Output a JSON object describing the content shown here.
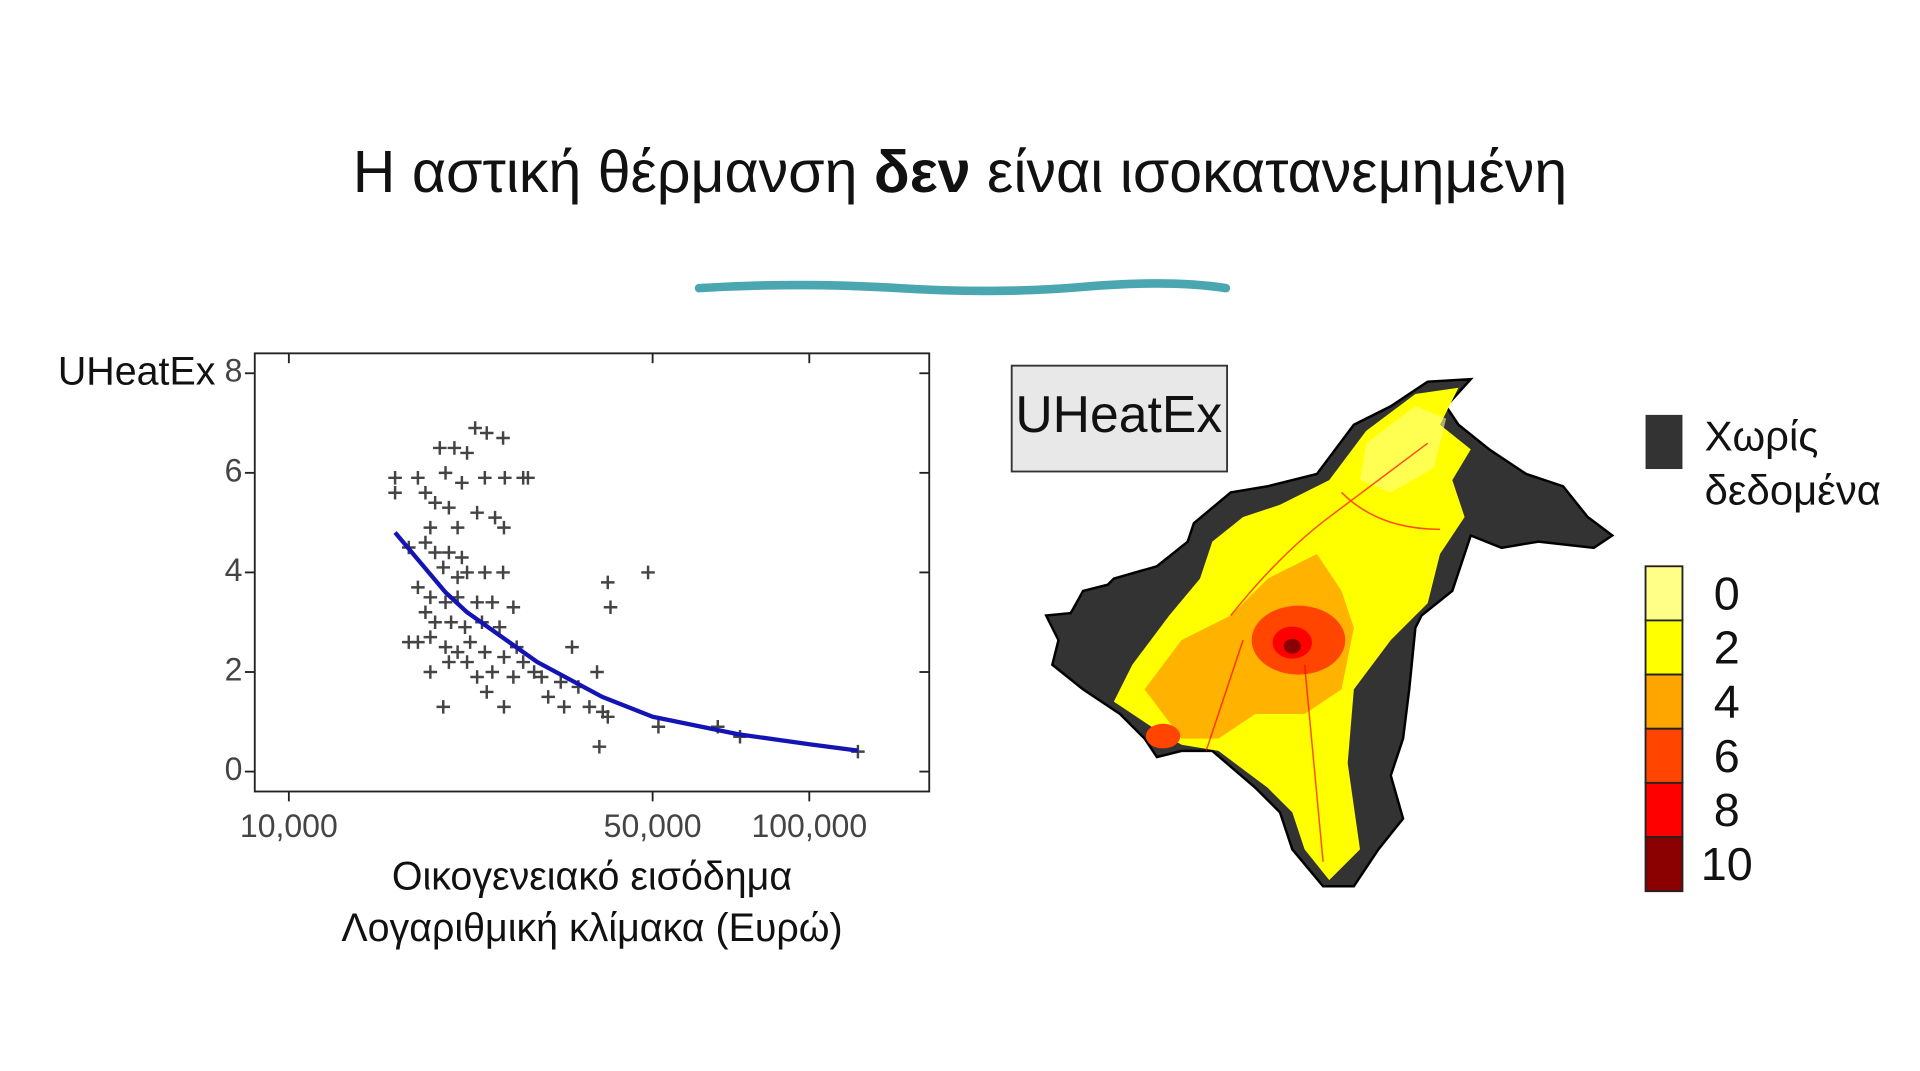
{
  "slide_title": {
    "before": "Η αστική θέρμανση",
    "bold": "δεν",
    "after": "είναι ισοκατανεμημένη"
  },
  "chart_data": [
    {
      "type": "scatter",
      "y_label": "UHeatEx",
      "x_label": [
        "Οικογενειακό εισόδημα",
        "Λογαριθμική κλίμακα (Ευρώ)"
      ],
      "xscale": "log",
      "xlim": [
        8600,
        170000
      ],
      "ylim": [
        -0.4,
        8.4
      ],
      "xticks": [
        {
          "value": 10000,
          "label": "10,000"
        },
        {
          "value": 50000,
          "label": "50,000"
        },
        {
          "value": 100000,
          "label": "100,000"
        }
      ],
      "yticks": [
        0,
        2,
        4,
        6,
        8
      ],
      "points": {
        "color": "#444444",
        "x": [
          16000,
          16000,
          17700,
          18300,
          19500,
          20800,
          22800,
          24000,
          25800,
          22000,
          23800,
          26000,
          28200,
          28800,
          20000,
          21500,
          19100,
          20300,
          23000,
          24900,
          25900,
          21100,
          18700,
          17000,
          18300,
          19100,
          20300,
          21500,
          19800,
          21100,
          22000,
          23800,
          25800,
          17700,
          18700,
          20000,
          21100,
          23000,
          24600,
          27000,
          18300,
          19100,
          20500,
          21800,
          23500,
          25400,
          17700,
          18700,
          20000,
          21100,
          22300,
          23800,
          25900,
          27400,
          28200,
          29600,
          30600,
          33300,
          36000,
          35000,
          39100,
          31500,
          33800,
          37800,
          40100,
          41000,
          39500,
          25900,
          24000,
          19800,
          17000,
          41000,
          41500,
          49000,
          51300,
          66700,
          73600,
          124000,
          22000,
          23000,
          24600,
          27000,
          18700,
          20300
        ],
        "y": [
          5.9,
          5.6,
          5.9,
          5.6,
          6.5,
          6.5,
          6.9,
          6.8,
          6.7,
          6.4,
          5.9,
          5.9,
          5.9,
          5.9,
          6.0,
          5.8,
          5.4,
          5.3,
          5.2,
          5.1,
          4.9,
          4.9,
          4.9,
          4.5,
          4.6,
          4.4,
          4.4,
          4.3,
          4.1,
          3.9,
          4.0,
          4.0,
          4.0,
          3.7,
          3.5,
          3.4,
          3.5,
          3.4,
          3.4,
          3.3,
          3.2,
          3.0,
          3.0,
          2.9,
          3.0,
          2.9,
          2.6,
          2.7,
          2.5,
          2.4,
          2.6,
          2.4,
          2.3,
          2.5,
          2.2,
          2.0,
          1.9,
          1.8,
          1.7,
          2.5,
          2.0,
          1.5,
          1.3,
          1.3,
          1.2,
          1.1,
          0.5,
          1.3,
          1.6,
          1.3,
          2.6,
          3.8,
          3.3,
          4.0,
          0.9,
          0.9,
          0.7,
          0.4,
          2.2,
          1.9,
          2.0,
          1.9,
          2.0,
          2.2
        ]
      },
      "fit": {
        "color": "#1414b4",
        "x": [
          16000,
          20000,
          22000,
          30000,
          40000,
          50000,
          73000,
          100000,
          124000
        ],
        "y": [
          4.8,
          3.6,
          3.2,
          2.2,
          1.5,
          1.1,
          0.75,
          0.55,
          0.42
        ]
      }
    },
    {
      "type": "map",
      "title": "UHeatEx",
      "no_data": {
        "label": [
          "Χωρίς",
          "δεδομένα"
        ],
        "color": "#333333"
      },
      "legend": {
        "values": [
          0,
          2,
          4,
          6,
          8,
          10
        ],
        "colors": [
          "#ffff88",
          "#ffff00",
          "#ffa500",
          "#ff4500",
          "#ff0000",
          "#8b0000"
        ]
      }
    }
  ]
}
